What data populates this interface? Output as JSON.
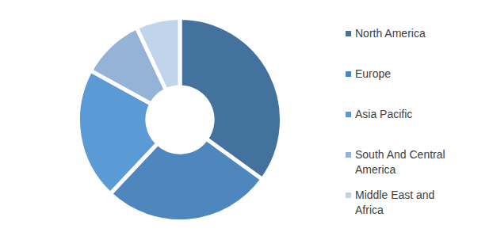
{
  "chart_data": {
    "type": "doughnut",
    "categories": [
      "North America",
      "Europe",
      "Asia Pacific",
      "South And Central America",
      "Middle East and Africa"
    ],
    "values": [
      35,
      27,
      21,
      10,
      7
    ],
    "colors": [
      "#44729e",
      "#4e87be",
      "#5b9bd5",
      "#95b3d7",
      "#c0d4ec"
    ],
    "legend": "right"
  }
}
